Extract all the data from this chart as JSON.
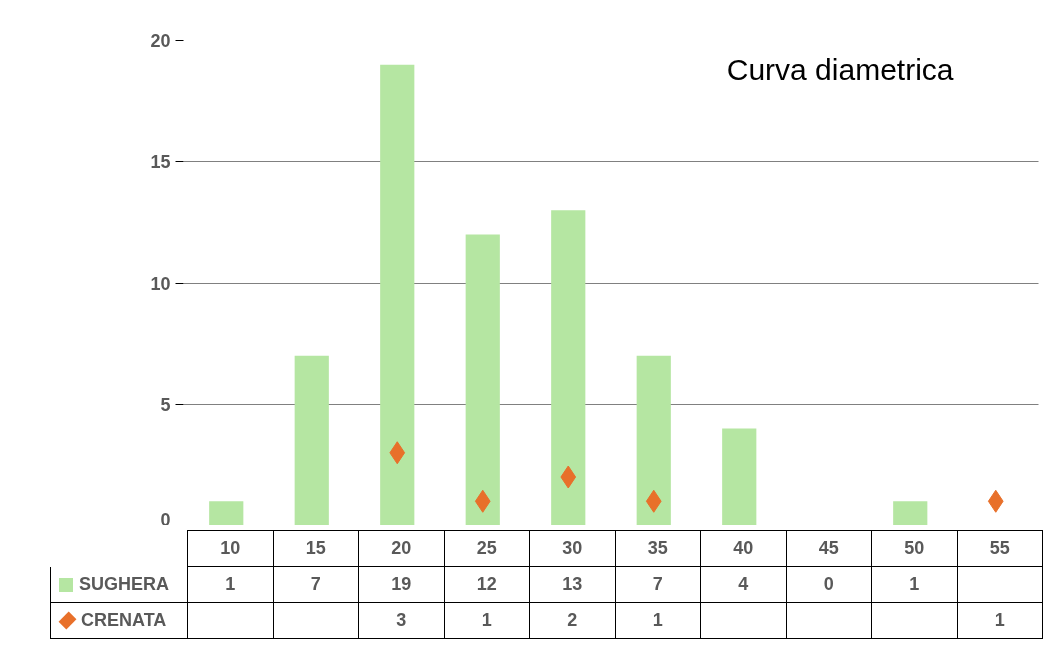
{
  "chart_data": {
    "type": "bar",
    "title": "Curva diametrica",
    "categories": [
      "10",
      "15",
      "20",
      "25",
      "30",
      "35",
      "40",
      "45",
      "50",
      "55"
    ],
    "series": [
      {
        "name": "SUGHERA",
        "color": "#b5e6a2",
        "values": [
          1,
          7,
          19,
          12,
          13,
          7,
          4,
          0,
          1,
          null
        ]
      },
      {
        "name": "CRENATA",
        "type": "scatter",
        "color": "#e8702a",
        "values": [
          null,
          null,
          3,
          1,
          2,
          1,
          null,
          null,
          null,
          1
        ]
      }
    ],
    "marker": "diamond",
    "ylim": [
      0,
      20
    ],
    "yticks": [
      0,
      5,
      10,
      15,
      20
    ],
    "grid": "y",
    "legend": "bottom left",
    "data_labels": true
  }
}
